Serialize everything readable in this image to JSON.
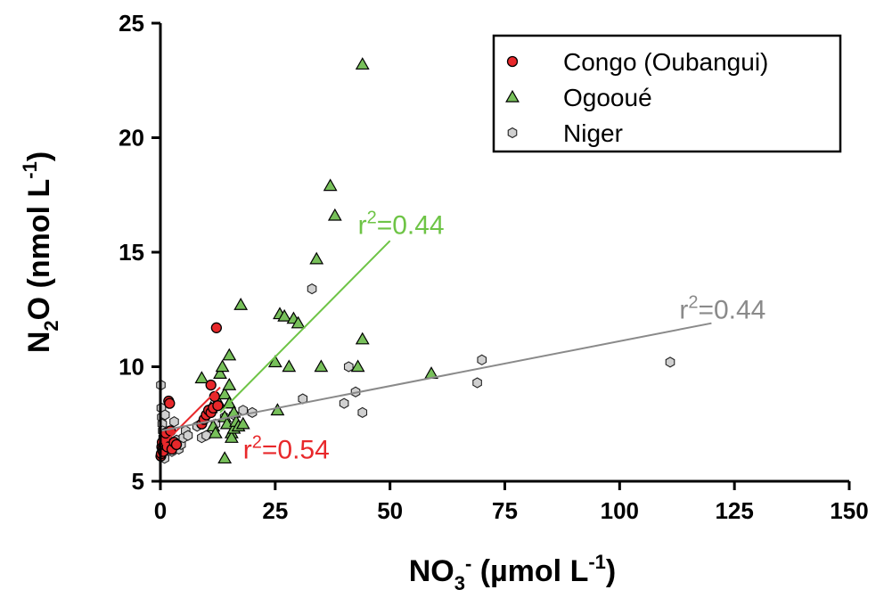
{
  "chart_data": {
    "type": "scatter",
    "xlabel": {
      "base": "NO",
      "sub": "3",
      "sup": "-",
      "unit_pre": " (µmol L",
      "unit_sup": "-1",
      "unit_post": ")"
    },
    "ylabel": {
      "base": "N",
      "sub": "2",
      "mid": "O (nmol L",
      "sup": "-1",
      "post": ")"
    },
    "xlim": [
      0,
      150
    ],
    "ylim": [
      5,
      25
    ],
    "xticks": [
      "0",
      "25",
      "50",
      "75",
      "100",
      "125",
      "150"
    ],
    "yticks": [
      "5",
      "10",
      "15",
      "20",
      "25"
    ],
    "grid": false,
    "legend_position": "top-right",
    "series": [
      {
        "name": "Congo (Oubangui)",
        "marker": "circle",
        "color": "#e8282b",
        "points": [
          [
            0.1,
            6.1
          ],
          [
            0.2,
            6.2
          ],
          [
            0.3,
            6.5
          ],
          [
            0.4,
            6.7
          ],
          [
            0.5,
            6.4
          ],
          [
            0.6,
            6.3
          ],
          [
            0.8,
            6.6
          ],
          [
            1.0,
            6.8
          ],
          [
            1.2,
            7.1
          ],
          [
            1.5,
            6.5
          ],
          [
            1.8,
            8.5
          ],
          [
            2.0,
            8.4
          ],
          [
            2.2,
            7.2
          ],
          [
            2.5,
            6.4
          ],
          [
            3.0,
            6.7
          ],
          [
            3.5,
            6.6
          ],
          [
            9.0,
            7.5
          ],
          [
            9.5,
            7.7
          ],
          [
            10.0,
            7.9
          ],
          [
            10.5,
            8.1
          ],
          [
            11.0,
            8.0
          ],
          [
            11.5,
            8.2
          ],
          [
            11.0,
            9.2
          ],
          [
            11.8,
            8.7
          ],
          [
            12.5,
            8.3
          ],
          [
            12.2,
            11.7
          ]
        ],
        "fit": {
          "x": [
            0.5,
            13
          ],
          "y": [
            6.6,
            9.1
          ],
          "r2_label": "r²=0.54",
          "r2": "0.54"
        }
      },
      {
        "name": "Ogooué",
        "marker": "triangle",
        "color": "#77c05a",
        "points": [
          [
            9,
            9.5
          ],
          [
            11,
            8.2
          ],
          [
            11.5,
            7.4
          ],
          [
            12,
            7.1
          ],
          [
            12.5,
            8.5
          ],
          [
            13,
            9.7
          ],
          [
            13.5,
            10.0
          ],
          [
            14,
            8.8
          ],
          [
            14,
            7.8
          ],
          [
            14,
            6.0
          ],
          [
            14.5,
            7.5
          ],
          [
            15,
            10.5
          ],
          [
            15,
            9.2
          ],
          [
            15,
            8.4
          ],
          [
            15.5,
            7.1
          ],
          [
            15.5,
            6.9
          ],
          [
            16,
            7.3
          ],
          [
            16,
            8.0
          ],
          [
            16.5,
            7.6
          ],
          [
            17,
            7.4
          ],
          [
            17.5,
            12.7
          ],
          [
            18,
            7.5
          ],
          [
            25,
            10.2
          ],
          [
            25.5,
            8.1
          ],
          [
            26,
            12.3
          ],
          [
            27,
            12.2
          ],
          [
            28,
            10.0
          ],
          [
            29,
            12.1
          ],
          [
            30,
            11.9
          ],
          [
            34,
            14.7
          ],
          [
            35,
            10.0
          ],
          [
            37,
            17.9
          ],
          [
            38,
            16.6
          ],
          [
            43,
            10.0
          ],
          [
            44,
            11.2
          ],
          [
            44,
            23.2
          ],
          [
            59,
            9.7
          ]
        ],
        "fit": {
          "x": [
            13,
            50
          ],
          "y": [
            8.0,
            15.5
          ],
          "r2_label": "r²=0.44",
          "r2": "0.44"
        }
      },
      {
        "name": "Niger",
        "marker": "hexagon",
        "color": "#d0d0d0",
        "points": [
          [
            0.1,
            9.2
          ],
          [
            0.2,
            8.2
          ],
          [
            0.3,
            7.8
          ],
          [
            0.4,
            7.5
          ],
          [
            0.5,
            7.2
          ],
          [
            0.6,
            6.9
          ],
          [
            0.7,
            6.6
          ],
          [
            0.8,
            6.3
          ],
          [
            0.9,
            6.0
          ],
          [
            1.0,
            7.9
          ],
          [
            1.2,
            7.1
          ],
          [
            1.5,
            6.8
          ],
          [
            2.0,
            6.5
          ],
          [
            2.5,
            6.3
          ],
          [
            3.0,
            7.6
          ],
          [
            3.5,
            6.8
          ],
          [
            4.0,
            6.4
          ],
          [
            4.5,
            6.6
          ],
          [
            5.0,
            6.9
          ],
          [
            5.5,
            7.2
          ],
          [
            6.0,
            7.0
          ],
          [
            8.0,
            7.4
          ],
          [
            9.0,
            6.9
          ],
          [
            10.0,
            7.0
          ],
          [
            12.0,
            7.5
          ],
          [
            14.0,
            7.8
          ],
          [
            16.0,
            7.9
          ],
          [
            18.0,
            8.1
          ],
          [
            20.0,
            8.0
          ],
          [
            31.0,
            8.6
          ],
          [
            33.0,
            13.4
          ],
          [
            40.0,
            8.4
          ],
          [
            41.0,
            10.0
          ],
          [
            42.5,
            8.9
          ],
          [
            44.0,
            8.0
          ],
          [
            69.0,
            9.3
          ],
          [
            70.0,
            10.3
          ],
          [
            111.0,
            10.2
          ]
        ],
        "fit": {
          "x": [
            0,
            120
          ],
          "y": [
            7.2,
            11.9
          ],
          "r2_label": "r²=0.44",
          "r2": "0.44"
        }
      }
    ]
  }
}
